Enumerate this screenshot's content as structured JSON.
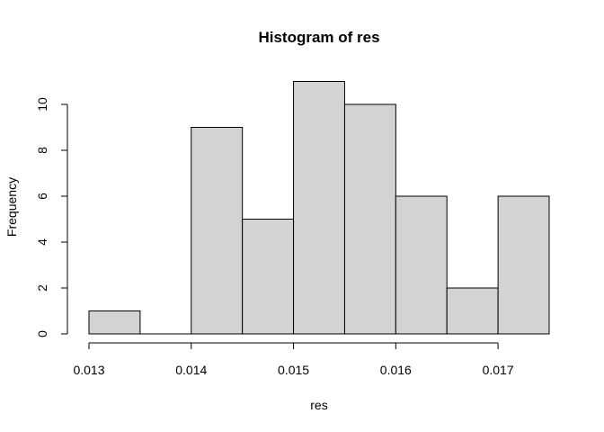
{
  "chart_data": {
    "type": "bar",
    "title": "Histogram of res",
    "xlabel": "res",
    "ylabel": "Frequency",
    "bins": [
      {
        "start": 0.013,
        "end": 0.0135,
        "count": 1
      },
      {
        "start": 0.0135,
        "end": 0.014,
        "count": 0
      },
      {
        "start": 0.014,
        "end": 0.0145,
        "count": 9
      },
      {
        "start": 0.0145,
        "end": 0.015,
        "count": 5
      },
      {
        "start": 0.015,
        "end": 0.0155,
        "count": 11
      },
      {
        "start": 0.0155,
        "end": 0.016,
        "count": 10
      },
      {
        "start": 0.016,
        "end": 0.0165,
        "count": 6
      },
      {
        "start": 0.0165,
        "end": 0.017,
        "count": 2
      },
      {
        "start": 0.017,
        "end": 0.0175,
        "count": 6
      }
    ],
    "xlim": [
      0.013,
      0.0175
    ],
    "ylim": [
      0,
      11
    ],
    "x_ticks": [
      0.013,
      0.014,
      0.015,
      0.016,
      0.017
    ],
    "x_tick_labels": [
      "0.013",
      "0.014",
      "0.015",
      "0.016",
      "0.017"
    ],
    "y_ticks": [
      0,
      2,
      4,
      6,
      8,
      10
    ],
    "y_tick_labels": [
      "0",
      "2",
      "4",
      "6",
      "8",
      "10"
    ],
    "bar_color": "#d3d3d3",
    "grid": false,
    "legend": "none"
  }
}
